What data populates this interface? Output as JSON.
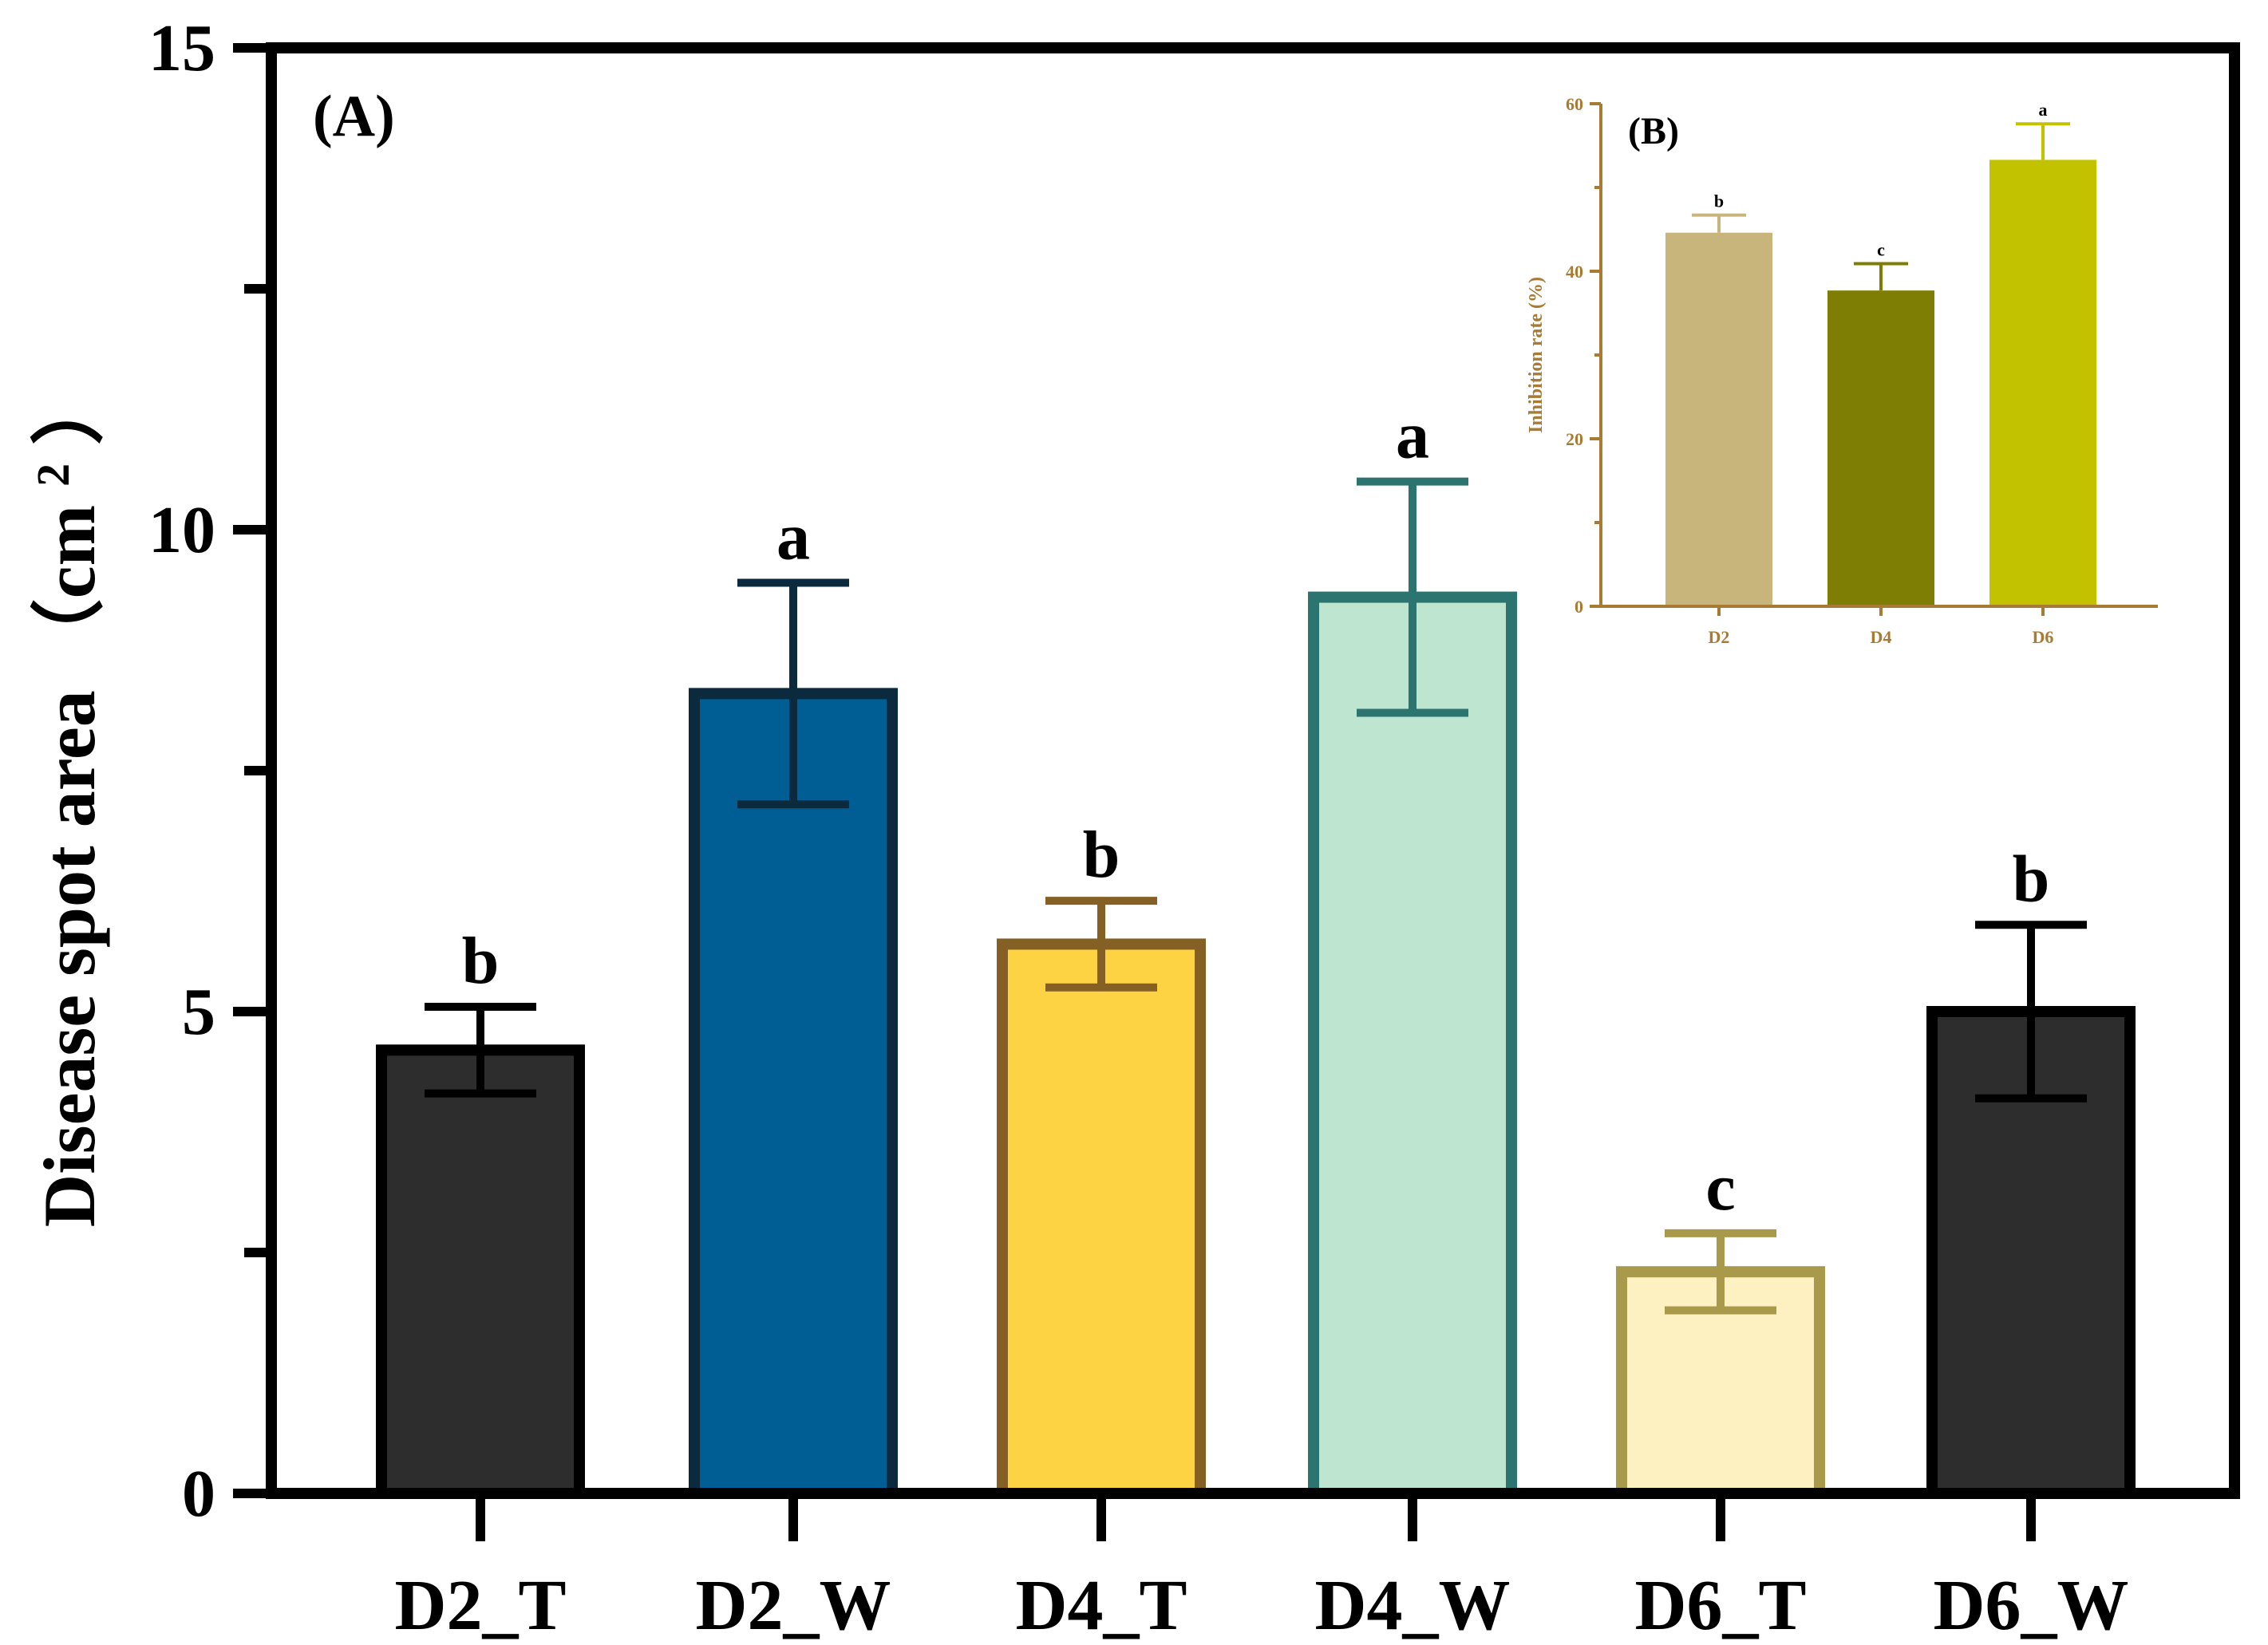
{
  "chart_data": [
    {
      "id": "A",
      "type": "bar",
      "panel_label": "(A)",
      "title": "",
      "ylabel": "Disease spot area (cm²)",
      "ylabel_main": "Disease spot area",
      "ylabel_unit_open": "（cm",
      "ylabel_unit_sup": "2",
      "ylabel_unit_close": "）",
      "xlabel": "",
      "ylim": [
        0,
        15
      ],
      "yticks": [
        0,
        5,
        10,
        15
      ],
      "grid": false,
      "categories": [
        "D2_T",
        "D2_W",
        "D4_T",
        "D4_W",
        "D6_T",
        "D6_W"
      ],
      "values": [
        4.6,
        8.3,
        5.7,
        9.3,
        2.3,
        5.0
      ],
      "errors": [
        0.45,
        1.15,
        0.45,
        1.2,
        0.4,
        0.9
      ],
      "significance": [
        "b",
        "a",
        "b",
        "a",
        "c",
        "b"
      ],
      "fill_colors": [
        "#2d2d2d",
        "#015e94",
        "#fdd243",
        "#bde5cf",
        "#fdf0c1",
        "#2d2d2d"
      ],
      "edge_colors": [
        "#000000",
        "#0b2a3d",
        "#856025",
        "#2b7470",
        "#a8994b",
        "#000000"
      ]
    },
    {
      "id": "B",
      "type": "bar",
      "panel_label": "(B)",
      "title": "",
      "ylabel": "Inhibition rate (%)",
      "xlabel": "",
      "ylim": [
        0,
        60
      ],
      "yticks": [
        0,
        20,
        40,
        60
      ],
      "grid": false,
      "categories": [
        "D2",
        "D4",
        "D6"
      ],
      "values": [
        44.6,
        37.7,
        53.3
      ],
      "errors": [
        2.1,
        3.2,
        4.3
      ],
      "significance": [
        "b",
        "c",
        "a"
      ],
      "fill_colors": [
        "#c8b57c",
        "#7e7e05",
        "#c2c200"
      ],
      "axis_color": "#a87b35"
    }
  ]
}
